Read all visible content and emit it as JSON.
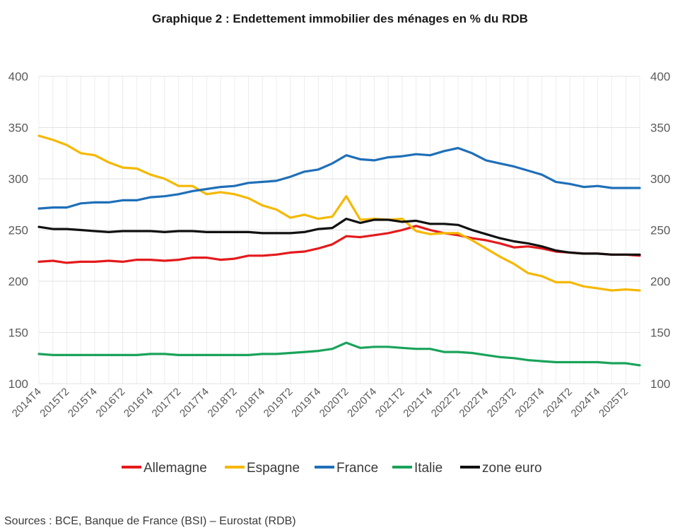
{
  "title": "Graphique 2 : Endettement immobilier des ménages en % du RDB",
  "source": "Sources : BCE, Banque de France (BSI) – Eurostat (RDB)",
  "chart_data": {
    "type": "line",
    "title": "Graphique 2 : Endettement immobilier des ménages en % du RDB",
    "ylim": [
      100,
      400
    ],
    "yticks": [
      100,
      150,
      200,
      250,
      300,
      350,
      400
    ],
    "secondary_y_axis": true,
    "grid": true,
    "legend_position": "bottom",
    "x": [
      "2014T4",
      "2015T1",
      "2015T2",
      "2015T3",
      "2015T4",
      "2016T1",
      "2016T2",
      "2016T3",
      "2016T4",
      "2017T1",
      "2017T2",
      "2017T3",
      "2017T4",
      "2018T1",
      "2018T2",
      "2018T3",
      "2018T4",
      "2019T1",
      "2019T2",
      "2019T3",
      "2019T4",
      "2020T1",
      "2020T2",
      "2020T3",
      "2020T4",
      "2021T1",
      "2021T2",
      "2021T3",
      "2021T4",
      "2022T1",
      "2022T2",
      "2022T3",
      "2022T4",
      "2023T1",
      "2023T2",
      "2023T3",
      "2023T4",
      "2024T1",
      "2024T2",
      "2024T3",
      "2024T4",
      "2025T1",
      "2025T2",
      "2025T3"
    ],
    "xtick_labels": [
      "2014T4",
      "2015T2",
      "2015T4",
      "2016T2",
      "2016T4",
      "2017T2",
      "2017T4",
      "2018T2",
      "2018T4",
      "2019T2",
      "2019T4",
      "2020T2",
      "2020T4",
      "2021T2",
      "2021T4",
      "2022T2",
      "2022T4",
      "2023T2",
      "2023T4",
      "2024T2",
      "2024T4",
      "2025T2"
    ],
    "series": [
      {
        "name": "Allemagne",
        "color": "#e41a1c",
        "values": [
          219,
          220,
          218,
          219,
          219,
          220,
          219,
          221,
          221,
          220,
          221,
          223,
          223,
          221,
          222,
          225,
          225,
          226,
          228,
          229,
          232,
          236,
          244,
          243,
          245,
          247,
          250,
          254,
          250,
          247,
          245,
          242,
          240,
          237,
          233,
          234,
          232,
          229,
          228,
          227,
          227,
          226,
          226,
          225
        ]
      },
      {
        "name": "Espagne",
        "color": "#f5b800",
        "values": [
          342,
          338,
          333,
          325,
          323,
          316,
          311,
          310,
          304,
          300,
          293,
          293,
          285,
          287,
          285,
          281,
          274,
          270,
          262,
          265,
          261,
          263,
          283,
          260,
          261,
          260,
          261,
          249,
          246,
          247,
          247,
          240,
          232,
          224,
          217,
          208,
          205,
          199,
          199,
          195,
          193,
          191,
          192,
          191
        ]
      },
      {
        "name": "France",
        "color": "#1f6fb8",
        "values": [
          271,
          272,
          272,
          276,
          277,
          277,
          279,
          279,
          282,
          283,
          285,
          288,
          290,
          292,
          293,
          296,
          297,
          298,
          302,
          307,
          309,
          315,
          323,
          319,
          318,
          321,
          322,
          324,
          323,
          327,
          330,
          325,
          318,
          315,
          312,
          308,
          304,
          297,
          295,
          292,
          293,
          291,
          291,
          291
        ]
      },
      {
        "name": "Italie",
        "color": "#1aa35a",
        "values": [
          129,
          128,
          128,
          128,
          128,
          128,
          128,
          128,
          129,
          129,
          128,
          128,
          128,
          128,
          128,
          128,
          129,
          129,
          130,
          131,
          132,
          134,
          140,
          135,
          136,
          136,
          135,
          134,
          134,
          131,
          131,
          130,
          128,
          126,
          125,
          123,
          122,
          121,
          121,
          121,
          121,
          120,
          120,
          118
        ]
      },
      {
        "name": "zone euro",
        "color": "#111111",
        "values": [
          253,
          251,
          251,
          250,
          249,
          248,
          249,
          249,
          249,
          248,
          249,
          249,
          248,
          248,
          248,
          248,
          247,
          247,
          247,
          248,
          251,
          252,
          261,
          257,
          260,
          260,
          258,
          259,
          256,
          256,
          255,
          250,
          246,
          242,
          239,
          237,
          234,
          230,
          228,
          227,
          227,
          226,
          226,
          226
        ]
      }
    ]
  }
}
